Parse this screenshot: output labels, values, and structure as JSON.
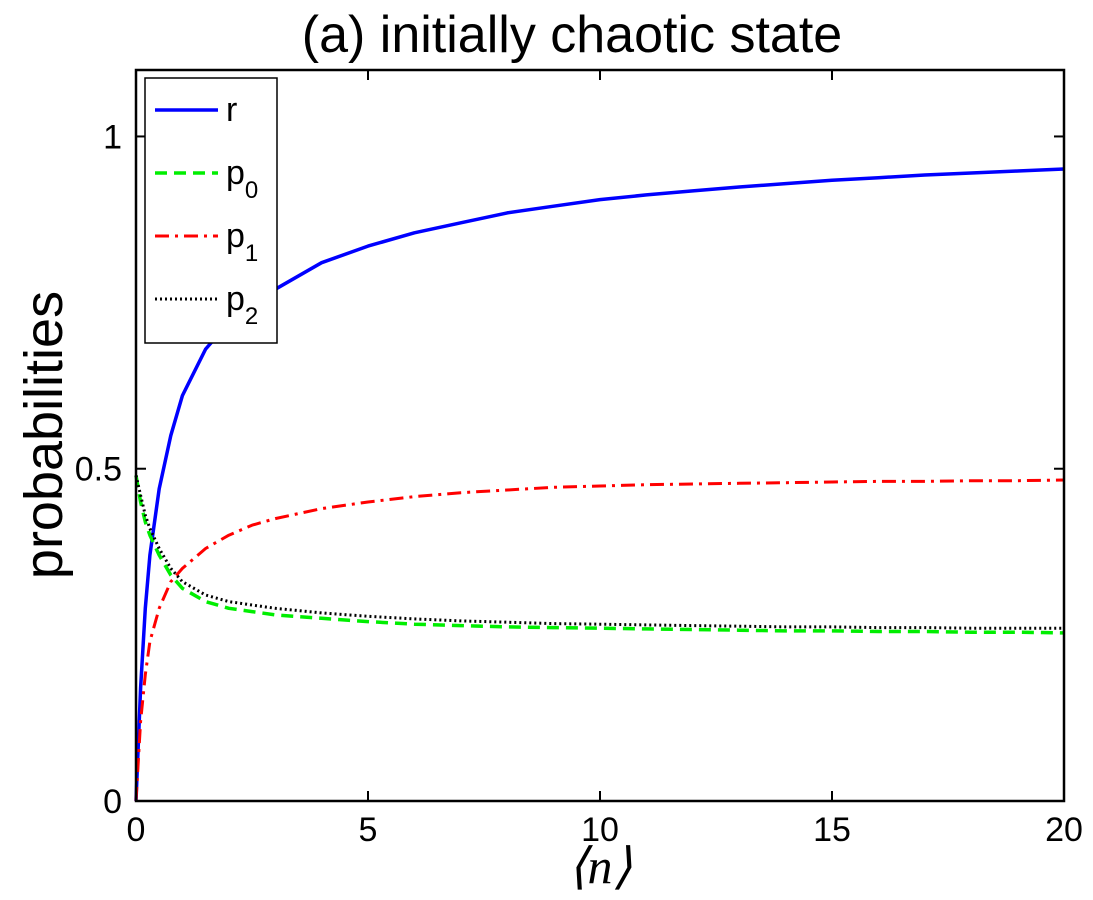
{
  "chart_data": {
    "type": "line",
    "title": "(a) initially chaotic state",
    "xlabel": "⟨n⟩",
    "ylabel": "probabilities",
    "xlim": [
      0,
      20
    ],
    "ylim": [
      0,
      1.1
    ],
    "xticks": [
      0,
      5,
      10,
      15,
      20
    ],
    "xtick_labels": [
      "0",
      "5",
      "10",
      "15",
      "20"
    ],
    "yticks": [
      0,
      0.5,
      1
    ],
    "ytick_labels": [
      "0",
      "0.5",
      "1"
    ],
    "grid": false,
    "legend_position": "top-left",
    "x": [
      0,
      0.1,
      0.2,
      0.3,
      0.5,
      0.75,
      1,
      1.5,
      2,
      2.5,
      3,
      4,
      5,
      6,
      7,
      8,
      9,
      10,
      11,
      12,
      13,
      14,
      15,
      16,
      17,
      18,
      19,
      20
    ],
    "series": [
      {
        "name": "r",
        "symbol": "r",
        "subscript": "",
        "color": "#0000ff",
        "dash": "solid",
        "values": [
          0,
          0.17,
          0.29,
          0.37,
          0.47,
          0.55,
          0.61,
          0.68,
          0.72,
          0.75,
          0.77,
          0.81,
          0.835,
          0.855,
          0.87,
          0.885,
          0.895,
          0.905,
          0.912,
          0.918,
          0.924,
          0.929,
          0.934,
          0.938,
          0.942,
          0.945,
          0.948,
          0.951
        ]
      },
      {
        "name": "p0",
        "symbol": "p",
        "subscript": "0",
        "color": "#00ee00",
        "dash": "dashed",
        "values": [
          0.49,
          0.45,
          0.42,
          0.4,
          0.37,
          0.34,
          0.32,
          0.3,
          0.29,
          0.285,
          0.28,
          0.275,
          0.27,
          0.266,
          0.264,
          0.262,
          0.261,
          0.26,
          0.259,
          0.258,
          0.257,
          0.256,
          0.256,
          0.255,
          0.255,
          0.254,
          0.254,
          0.253
        ]
      },
      {
        "name": "p1",
        "symbol": "p",
        "subscript": "1",
        "color": "#ff0000",
        "dash": "dashdot",
        "values": [
          0,
          0.12,
          0.19,
          0.24,
          0.29,
          0.33,
          0.35,
          0.38,
          0.4,
          0.415,
          0.425,
          0.44,
          0.45,
          0.458,
          0.464,
          0.468,
          0.472,
          0.474,
          0.476,
          0.477,
          0.478,
          0.479,
          0.48,
          0.481,
          0.481,
          0.482,
          0.482,
          0.483
        ]
      },
      {
        "name": "p2",
        "symbol": "p",
        "subscript": "2",
        "color": "#000000",
        "dash": "dotted",
        "values": [
          0.49,
          0.46,
          0.43,
          0.41,
          0.38,
          0.35,
          0.33,
          0.31,
          0.3,
          0.295,
          0.29,
          0.283,
          0.278,
          0.274,
          0.271,
          0.269,
          0.267,
          0.266,
          0.265,
          0.264,
          0.263,
          0.262,
          0.262,
          0.261,
          0.261,
          0.26,
          0.26,
          0.26
        ]
      }
    ]
  }
}
